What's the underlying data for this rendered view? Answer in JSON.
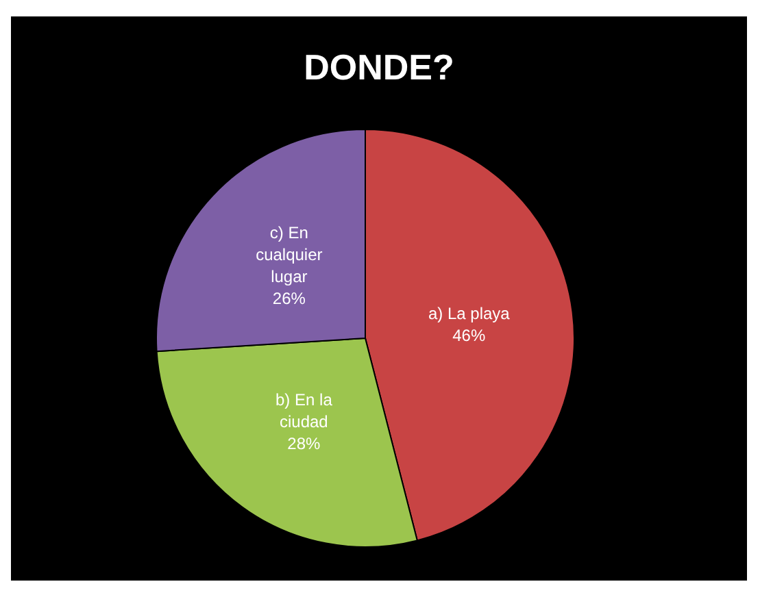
{
  "chart_data": {
    "type": "pie",
    "title": "DONDE?",
    "categories": [
      "a) La playa",
      "b) En la ciudad",
      "c) En cualquier lugar"
    ],
    "values": [
      46,
      28,
      26
    ],
    "colors": [
      "#c84444",
      "#9cc54e",
      "#7d5fa6"
    ],
    "value_labels": [
      "46%",
      "28%",
      "26%"
    ],
    "legend": false
  }
}
